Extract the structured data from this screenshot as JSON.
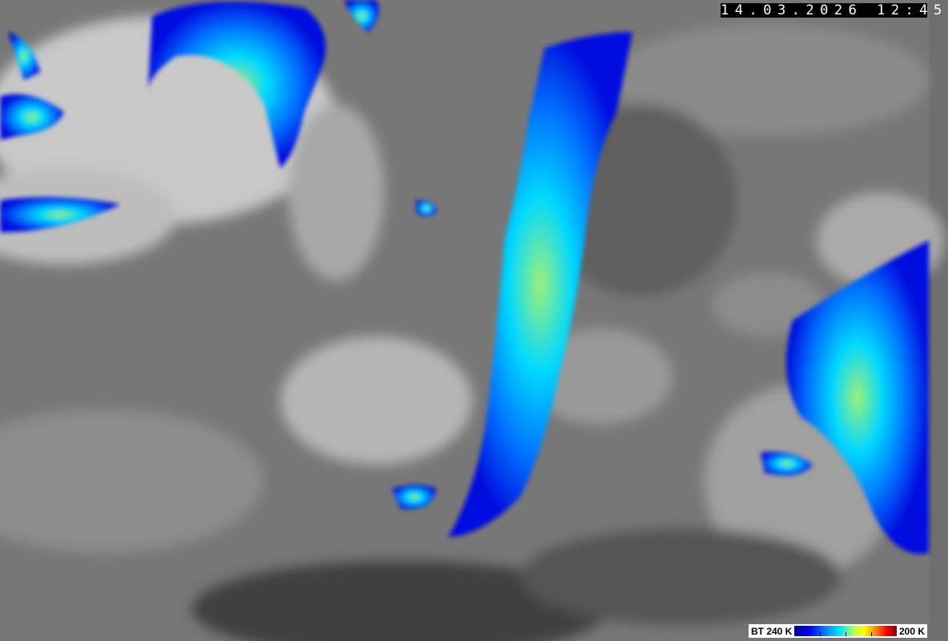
{
  "image": {
    "type": "satellite infrared brightness temperature image",
    "timestamp": "14.03.2026 12:45"
  },
  "legend": {
    "min_label": "BT 240 K",
    "max_label": "200 K",
    "colors": [
      "#00008c",
      "#0000ff",
      "#00e6ff",
      "#ffff00",
      "#ff0000",
      "#8c0000"
    ]
  }
}
